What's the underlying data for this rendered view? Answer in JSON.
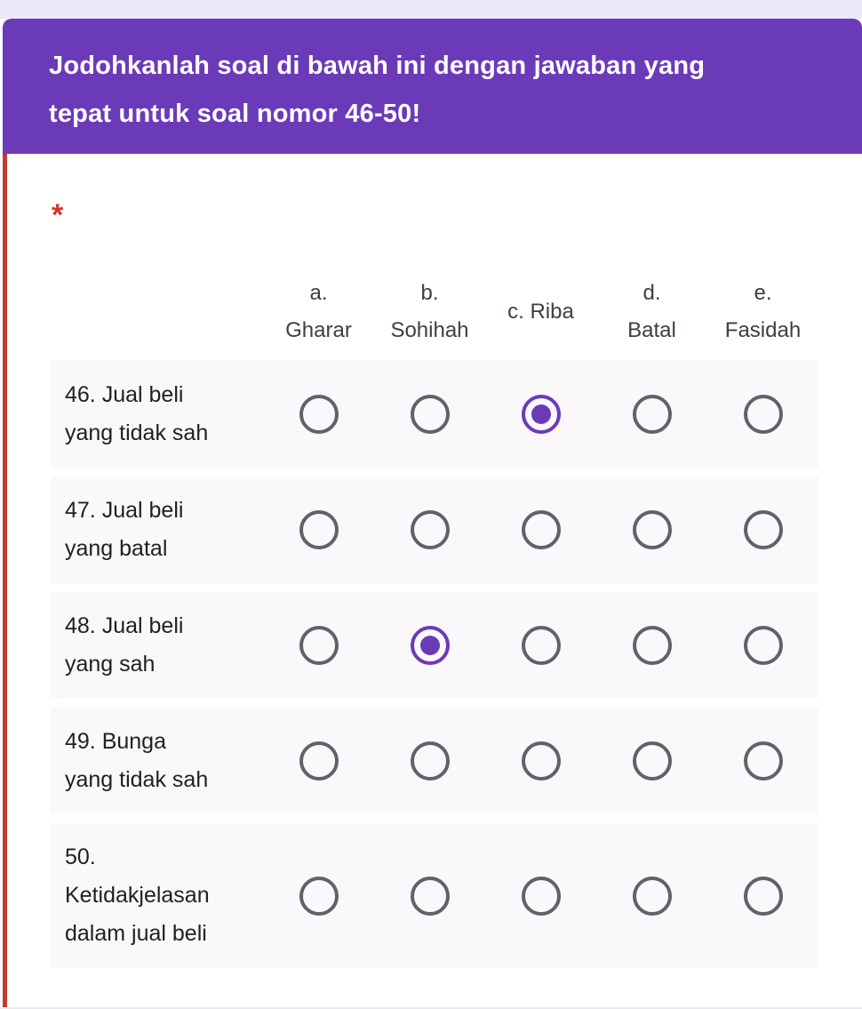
{
  "header": {
    "title": "Jodohkanlah soal di bawah ini dengan jawaban yang\ntepat untuk soal nomor 46-50!"
  },
  "question": {
    "required_marker": "*",
    "grid": {
      "columns": [
        {
          "label": "a.\nGharar"
        },
        {
          "label": "b.\nSohihah"
        },
        {
          "label": "c. Riba"
        },
        {
          "label": "d.\nBatal"
        },
        {
          "label": "e.\nFasidah"
        }
      ],
      "rows": [
        {
          "label": "46. Jual beli\nyang tidak sah",
          "selected": 2
        },
        {
          "label": "47. Jual beli\nyang batal",
          "selected": null
        },
        {
          "label": "48. Jual beli\nyang sah",
          "selected": 1
        },
        {
          "label": "49. Bunga\nyang tidak sah",
          "selected": null
        },
        {
          "label": "50.\nKetidakjelasan\ndalam jual beli",
          "selected": null
        }
      ]
    }
  },
  "colors": {
    "theme_purple": "#6B3AB8",
    "top_strip_lavender": "#ECE8F7",
    "error_left_border_red": "#C23B33",
    "required_asterisk_red": "#D93025",
    "row_band": "#FBF8FB",
    "radio_gray": "#5F6368",
    "row_text": "#202124",
    "column_header_text": "#3C4043"
  }
}
